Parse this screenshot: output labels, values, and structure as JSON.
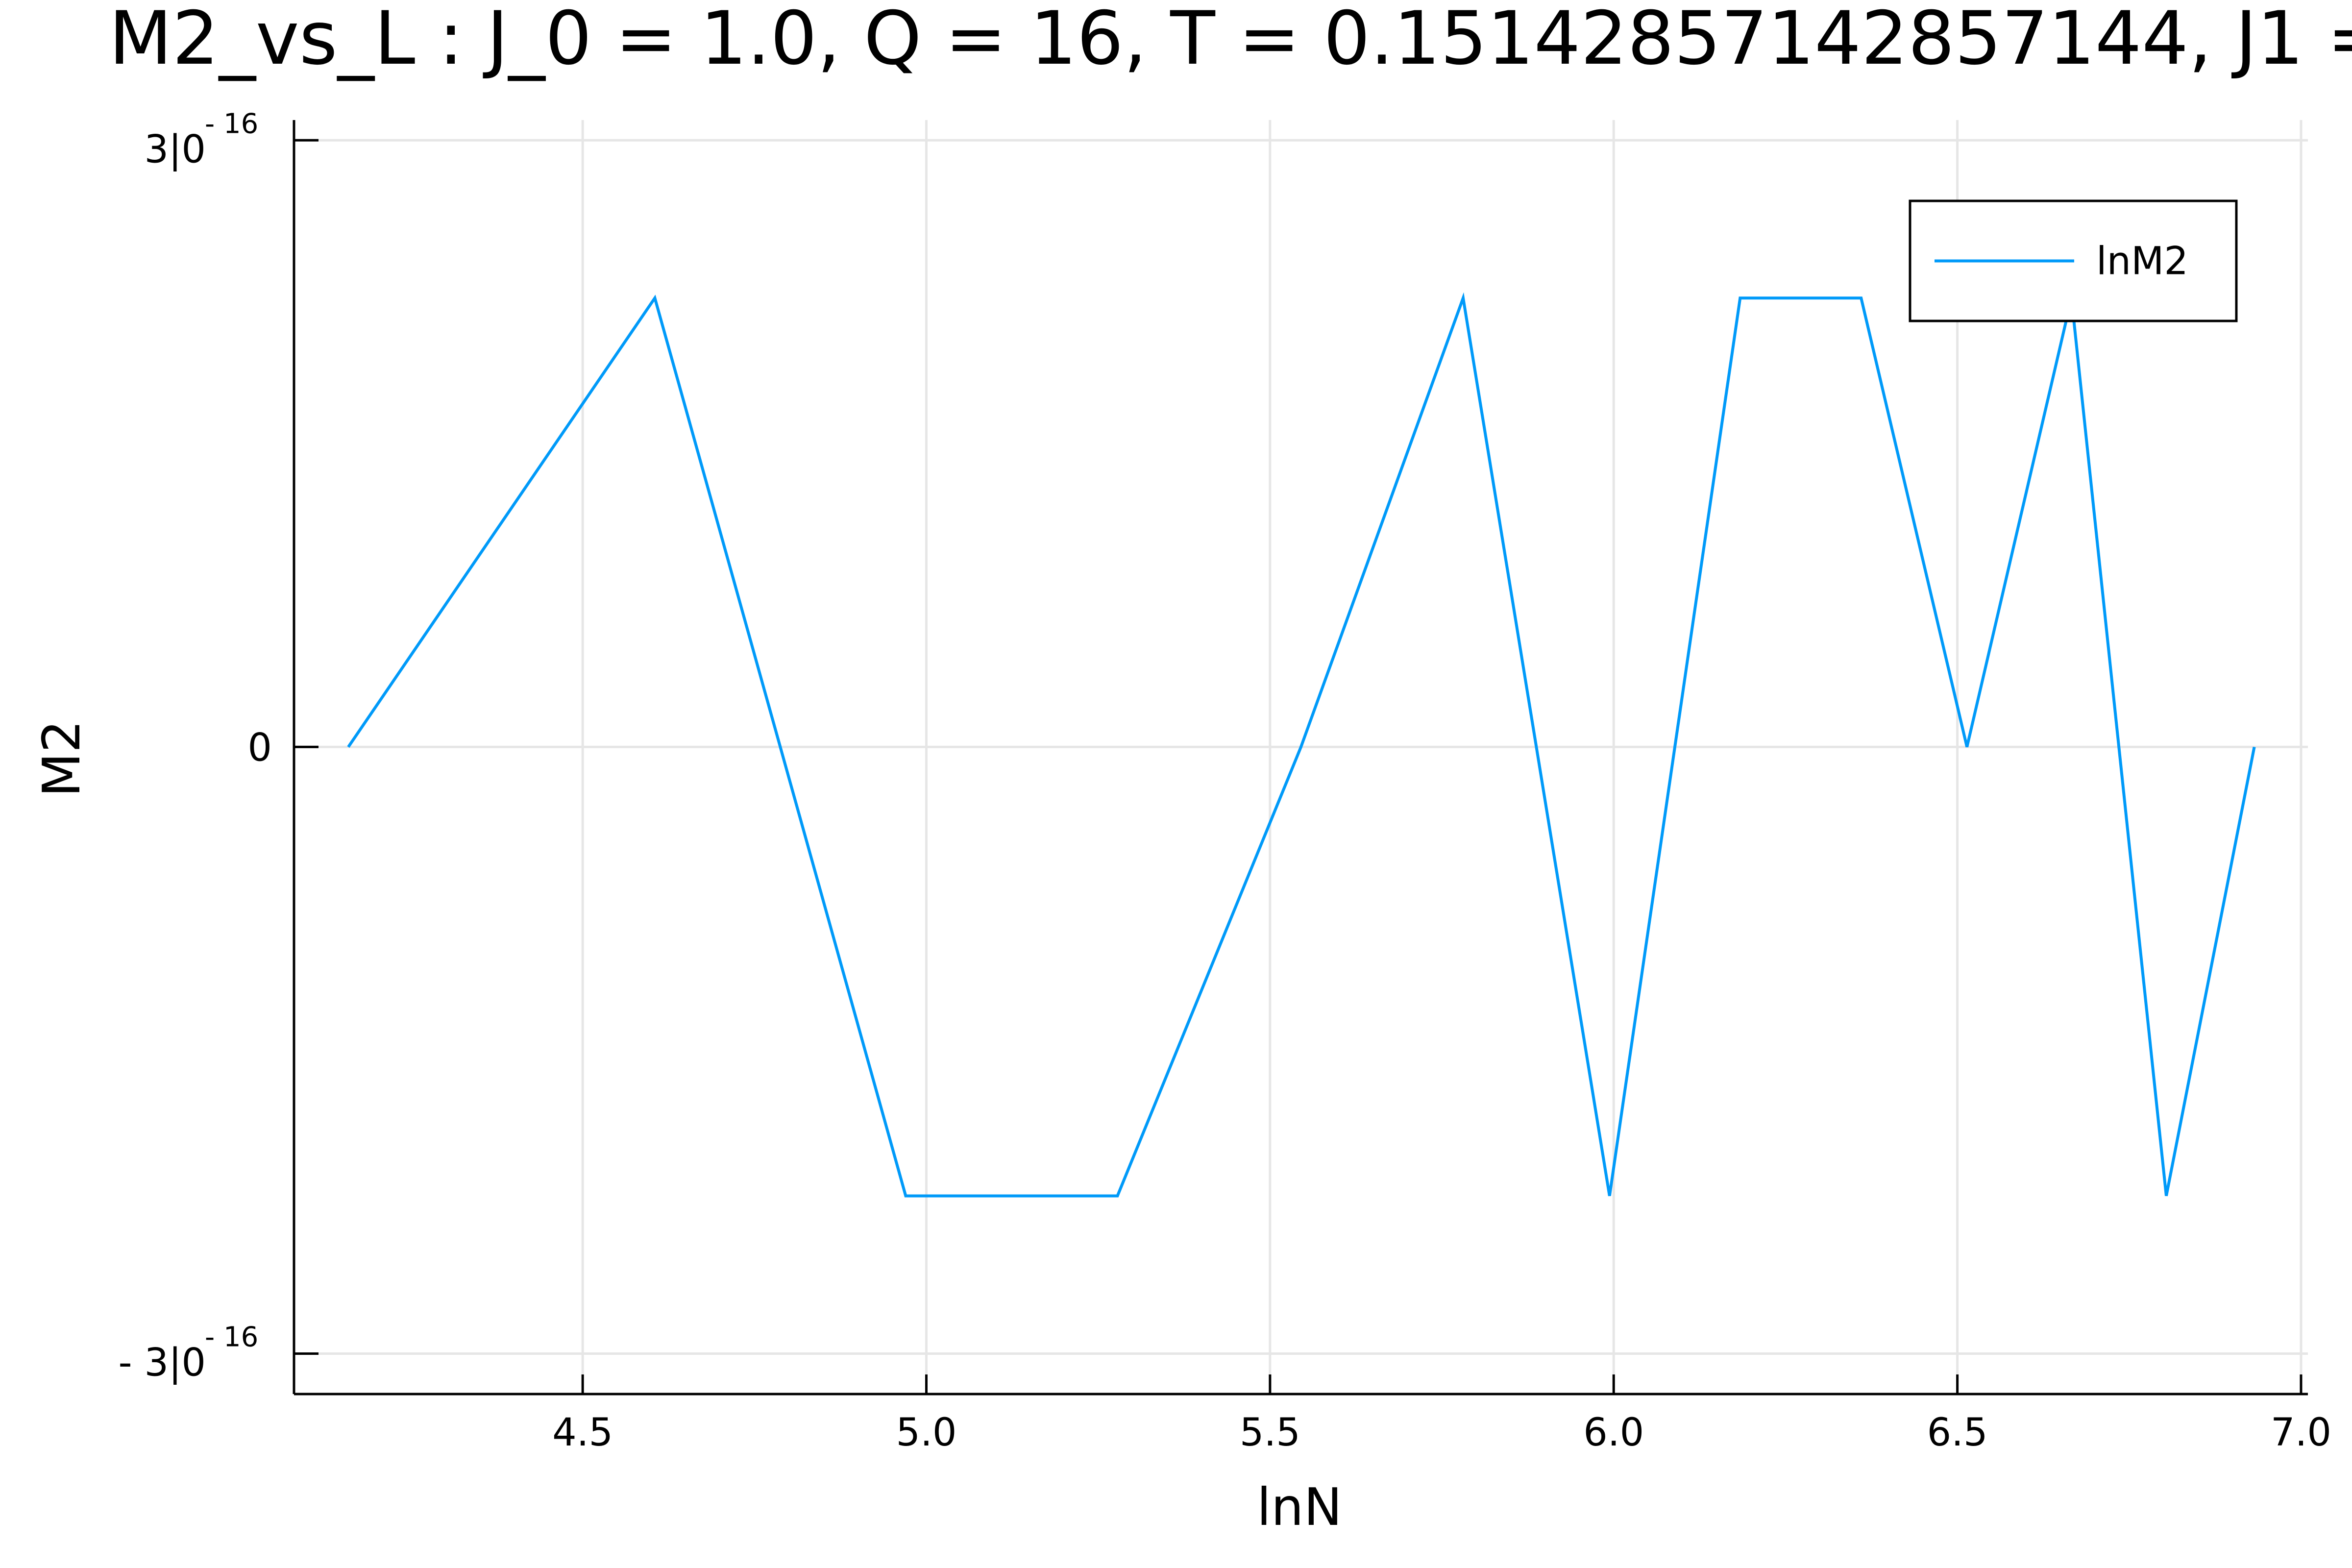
{
  "chart_data": {
    "type": "line",
    "title": "M2_vs_L : J_0 = 1.0, Q = 16, T = 0.15142857142857144, J1 =",
    "xlabel": "lnN",
    "ylabel": "M2",
    "xlim": [
      4.08,
      7.01
    ],
    "ylim": [
      -3.2e-16,
      3.1e-16
    ],
    "x_ticks": [
      {
        "value": 4.5,
        "label": "4.5"
      },
      {
        "value": 5.0,
        "label": "5.0"
      },
      {
        "value": 5.5,
        "label": "5.5"
      },
      {
        "value": 6.0,
        "label": "6.0"
      },
      {
        "value": 6.5,
        "label": "6.5"
      },
      {
        "value": 7.0,
        "label": "7.0"
      }
    ],
    "y_ticks": [
      {
        "value": 3e-16,
        "label": "3|0",
        "exponent": "- 16"
      },
      {
        "value": 0,
        "label": "0",
        "exponent": ""
      },
      {
        "value": -3e-16,
        "label": "- 3|0",
        "exponent": "- 16"
      }
    ],
    "grid": true,
    "legend_position": "top-right",
    "series": [
      {
        "name": "lnM2",
        "color": "#009af9",
        "x": [
          4.159,
          4.605,
          4.97,
          5.278,
          5.545,
          5.781,
          5.994,
          6.184,
          6.36,
          6.514,
          6.666,
          6.804,
          6.932
        ],
        "y": [
          0,
          2.22e-16,
          -2.22e-16,
          -2.22e-16,
          0,
          2.22e-16,
          -2.22e-16,
          2.22e-16,
          2.22e-16,
          0,
          2.22e-16,
          -2.22e-16,
          0
        ]
      }
    ]
  }
}
